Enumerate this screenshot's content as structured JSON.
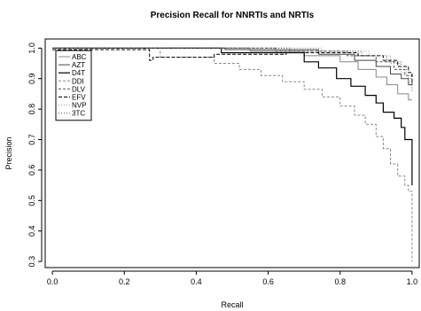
{
  "chart_data": {
    "type": "line",
    "title": "Precision Recall for NNRTIs and NRTIs",
    "xlabel": "Recall",
    "ylabel": "Precision",
    "xlim": [
      -0.02,
      1.02
    ],
    "ylim": [
      0.28,
      1.03
    ],
    "xticks": [
      0.0,
      0.2,
      0.4,
      0.6,
      0.8,
      1.0
    ],
    "xtick_labels": [
      "0.0",
      "0.2",
      "0.4",
      "0.6",
      "0.8",
      "1.0"
    ],
    "yticks": [
      0.3,
      0.4,
      0.5,
      0.6,
      0.7,
      0.8,
      0.9,
      1.0
    ],
    "ytick_labels": [
      "0.3",
      "0.4",
      "0.5",
      "0.6",
      "0.7",
      "0.8",
      "0.9",
      "1.0"
    ],
    "grid": false,
    "legend_position": "top-left",
    "series": [
      {
        "name": "ABC",
        "color": "#888888",
        "dash": "solid",
        "width": 1,
        "points": [
          [
            0.0,
            1.0
          ],
          [
            0.55,
            1.0
          ],
          [
            0.55,
            0.99
          ],
          [
            0.7,
            0.99
          ],
          [
            0.7,
            0.975
          ],
          [
            0.8,
            0.975
          ],
          [
            0.8,
            0.955
          ],
          [
            0.85,
            0.955
          ],
          [
            0.85,
            0.93
          ],
          [
            0.9,
            0.93
          ],
          [
            0.9,
            0.905
          ],
          [
            0.93,
            0.905
          ],
          [
            0.93,
            0.88
          ],
          [
            0.96,
            0.88
          ],
          [
            0.96,
            0.85
          ],
          [
            0.99,
            0.85
          ],
          [
            0.99,
            0.83
          ],
          [
            1.0,
            0.83
          ]
        ]
      },
      {
        "name": "AZT",
        "color": "#444444",
        "dash": "solid",
        "width": 1,
        "points": [
          [
            0.0,
            1.0
          ],
          [
            0.48,
            1.0
          ],
          [
            0.48,
            0.995
          ],
          [
            0.74,
            0.995
          ],
          [
            0.74,
            0.98
          ],
          [
            0.84,
            0.98
          ],
          [
            0.84,
            0.96
          ],
          [
            0.9,
            0.96
          ],
          [
            0.9,
            0.94
          ],
          [
            0.94,
            0.94
          ],
          [
            0.94,
            0.915
          ],
          [
            0.97,
            0.915
          ],
          [
            0.97,
            0.9
          ],
          [
            0.99,
            0.9
          ],
          [
            0.99,
            0.88
          ],
          [
            1.0,
            0.88
          ]
        ]
      },
      {
        "name": "D4T",
        "color": "#000000",
        "dash": "solid",
        "width": 1.2,
        "points": [
          [
            0.0,
            1.0
          ],
          [
            0.47,
            1.0
          ],
          [
            0.47,
            0.985
          ],
          [
            0.7,
            0.985
          ],
          [
            0.7,
            0.955
          ],
          [
            0.74,
            0.955
          ],
          [
            0.74,
            0.935
          ],
          [
            0.79,
            0.935
          ],
          [
            0.79,
            0.9
          ],
          [
            0.83,
            0.9
          ],
          [
            0.83,
            0.875
          ],
          [
            0.87,
            0.875
          ],
          [
            0.87,
            0.845
          ],
          [
            0.9,
            0.845
          ],
          [
            0.9,
            0.82
          ],
          [
            0.92,
            0.82
          ],
          [
            0.92,
            0.79
          ],
          [
            0.95,
            0.79
          ],
          [
            0.95,
            0.77
          ],
          [
            0.97,
            0.77
          ],
          [
            0.97,
            0.74
          ],
          [
            0.98,
            0.74
          ],
          [
            0.98,
            0.7
          ],
          [
            1.0,
            0.7
          ],
          [
            1.0,
            0.55
          ]
        ]
      },
      {
        "name": "DDI",
        "color": "#888888",
        "dash": "3,2",
        "width": 1,
        "points": [
          [
            0.0,
            1.0
          ],
          [
            0.3,
            1.0
          ],
          [
            0.3,
            0.97
          ],
          [
            0.45,
            0.97
          ],
          [
            0.45,
            0.95
          ],
          [
            0.52,
            0.95
          ],
          [
            0.52,
            0.93
          ],
          [
            0.58,
            0.93
          ],
          [
            0.58,
            0.91
          ],
          [
            0.64,
            0.91
          ],
          [
            0.64,
            0.89
          ],
          [
            0.7,
            0.89
          ],
          [
            0.7,
            0.865
          ],
          [
            0.75,
            0.865
          ],
          [
            0.75,
            0.84
          ],
          [
            0.8,
            0.84
          ],
          [
            0.8,
            0.81
          ],
          [
            0.84,
            0.81
          ],
          [
            0.84,
            0.78
          ],
          [
            0.87,
            0.78
          ],
          [
            0.87,
            0.75
          ],
          [
            0.9,
            0.75
          ],
          [
            0.9,
            0.71
          ],
          [
            0.92,
            0.71
          ],
          [
            0.92,
            0.67
          ],
          [
            0.94,
            0.67
          ],
          [
            0.94,
            0.62
          ],
          [
            0.96,
            0.62
          ],
          [
            0.96,
            0.58
          ],
          [
            0.98,
            0.58
          ],
          [
            0.98,
            0.55
          ],
          [
            0.99,
            0.55
          ],
          [
            0.99,
            0.53
          ],
          [
            1.0,
            0.53
          ],
          [
            1.0,
            0.3
          ]
        ]
      },
      {
        "name": "DLV",
        "color": "#555555",
        "dash": "3,2",
        "width": 1,
        "points": [
          [
            0.0,
            1.0
          ],
          [
            0.62,
            1.0
          ],
          [
            0.62,
            0.99
          ],
          [
            0.82,
            0.99
          ],
          [
            0.82,
            0.975
          ],
          [
            0.9,
            0.975
          ],
          [
            0.9,
            0.955
          ],
          [
            0.95,
            0.955
          ],
          [
            0.95,
            0.93
          ],
          [
            0.98,
            0.93
          ],
          [
            0.98,
            0.91
          ],
          [
            1.0,
            0.91
          ],
          [
            1.0,
            0.87
          ]
        ]
      },
      {
        "name": "EFV",
        "color": "#000000",
        "dash": "4,2",
        "width": 1,
        "points": [
          [
            0.0,
            0.995
          ],
          [
            0.27,
            0.995
          ],
          [
            0.27,
            0.96
          ],
          [
            0.28,
            0.96
          ],
          [
            0.28,
            0.97
          ],
          [
            0.45,
            0.97
          ],
          [
            0.45,
            0.98
          ],
          [
            0.65,
            0.98
          ],
          [
            0.65,
            0.985
          ],
          [
            0.85,
            0.985
          ],
          [
            0.85,
            0.975
          ],
          [
            0.92,
            0.975
          ],
          [
            0.92,
            0.96
          ],
          [
            0.96,
            0.96
          ],
          [
            0.96,
            0.94
          ],
          [
            0.99,
            0.94
          ],
          [
            0.99,
            0.92
          ],
          [
            1.0,
            0.92
          ],
          [
            1.0,
            0.88
          ]
        ]
      },
      {
        "name": "NVP",
        "color": "#999999",
        "dash": "1,2",
        "width": 1,
        "points": [
          [
            0.0,
            1.0
          ],
          [
            0.75,
            1.0
          ],
          [
            0.75,
            0.99
          ],
          [
            0.88,
            0.99
          ],
          [
            0.88,
            0.975
          ],
          [
            0.94,
            0.975
          ],
          [
            0.94,
            0.95
          ],
          [
            0.97,
            0.95
          ],
          [
            0.97,
            0.92
          ],
          [
            0.99,
            0.92
          ],
          [
            0.99,
            0.89
          ],
          [
            1.0,
            0.89
          ],
          [
            1.0,
            0.86
          ]
        ]
      },
      {
        "name": "3TC",
        "color": "#555555",
        "dash": "1,2",
        "width": 1,
        "points": [
          [
            0.0,
            1.0
          ],
          [
            0.66,
            1.0
          ],
          [
            0.66,
            0.99
          ],
          [
            0.86,
            0.99
          ],
          [
            0.86,
            0.975
          ],
          [
            0.93,
            0.975
          ],
          [
            0.93,
            0.955
          ],
          [
            0.97,
            0.955
          ],
          [
            0.97,
            0.93
          ],
          [
            0.99,
            0.93
          ],
          [
            0.99,
            0.9
          ],
          [
            1.0,
            0.9
          ],
          [
            1.0,
            0.86
          ]
        ]
      }
    ]
  }
}
